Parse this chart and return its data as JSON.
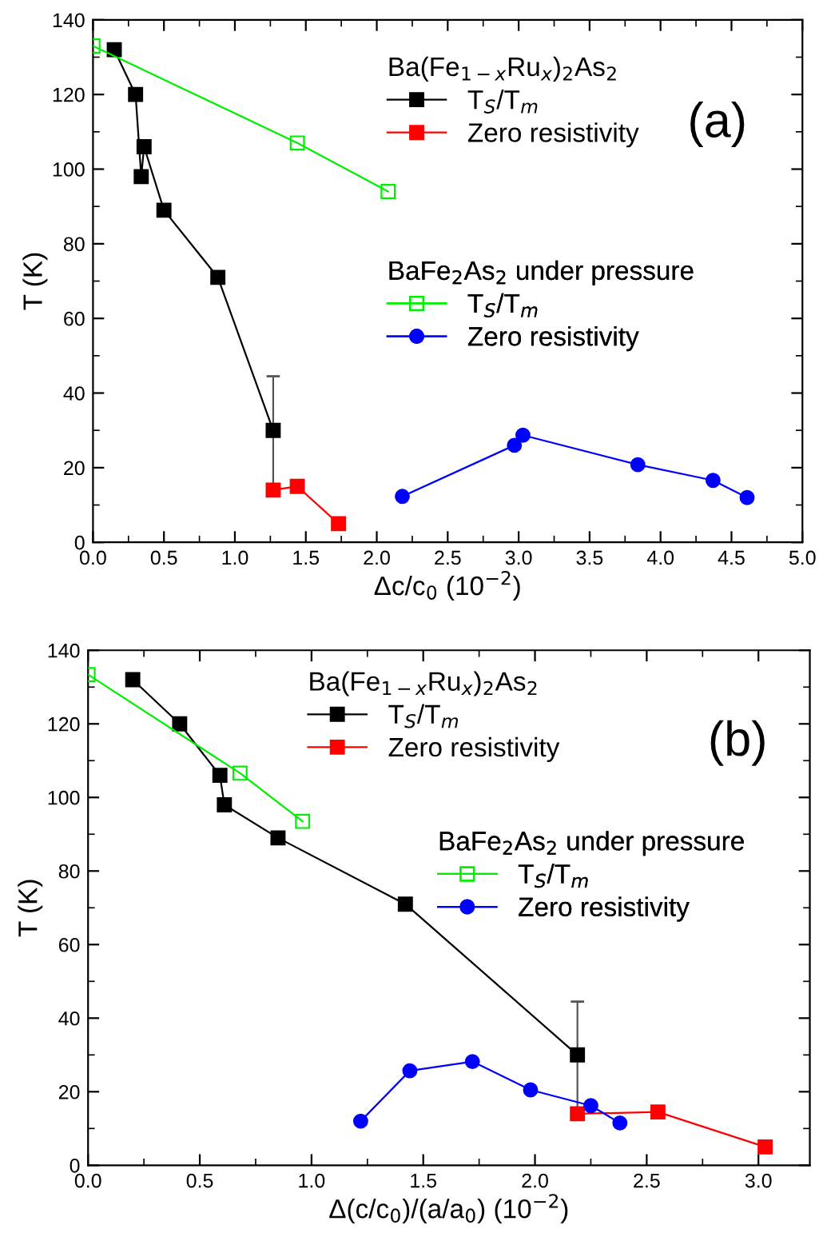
{
  "chart_data": [
    {
      "type": "line",
      "title": "(a)",
      "xlabel": "Δc/c$_{0}$ (10$^{−2}$)",
      "ylabel": "T (K)",
      "annotations": [
        "Ba(Fe$_{1−x}$Ru$_{x}$)$_{2}$As$_{2}$",
        "BaFe$_{2}$As$_{2}$ under pressure"
      ],
      "xlim": [
        0,
        5
      ],
      "xticks": [
        {
          "value": 0,
          "label": "0.0"
        },
        {
          "value": 0.5,
          "label": "0.5"
        },
        {
          "value": 1,
          "label": "1.0"
        },
        {
          "value": 1.5,
          "label": "1.5"
        },
        {
          "value": 2,
          "label": "2.0"
        },
        {
          "value": 2.5,
          "label": "2.5"
        },
        {
          "value": 3,
          "label": "3.0"
        },
        {
          "value": 3.5,
          "label": "3.5"
        },
        {
          "value": 4,
          "label": "4.0"
        },
        {
          "value": 4.5,
          "label": "4.5"
        },
        {
          "value": 5,
          "label": "5.0"
        }
      ],
      "ylim": [
        0,
        140
      ],
      "yticks": [
        0,
        20,
        40,
        60,
        80,
        100,
        120,
        140
      ],
      "grid": false,
      "legend": "top right",
      "series": [
        {
          "name": "T$_{S}$/T$_{m}$",
          "color": "#000000",
          "marker": "square",
          "x": [
            0.15,
            0.3,
            0.34,
            0.36,
            0.5,
            0.88,
            1.27
          ],
          "values": [
            132,
            120,
            98,
            106,
            89,
            71,
            30
          ],
          "errors": [
            null,
            null,
            null,
            null,
            null,
            1.5,
            14.5
          ]
        },
        {
          "name": "Zero resistivity",
          "color": "#ff0000",
          "marker": "square",
          "x": [
            1.27,
            1.44,
            1.73
          ],
          "values": [
            14,
            15,
            5
          ]
        },
        {
          "name": "T$_{S}$/T$_{m}$",
          "color": "#00ee00",
          "marker": "square",
          "x": [
            0.0,
            1.44,
            2.08
          ],
          "values": [
            133,
            107,
            94
          ]
        },
        {
          "name": "Zero resistivity",
          "color": "#0000ff",
          "marker": "circle",
          "x": [
            2.18,
            2.97,
            3.03,
            3.84,
            4.37,
            4.61
          ],
          "values": [
            12.3,
            26,
            28.7,
            20.8,
            16.6,
            12
          ]
        }
      ]
    },
    {
      "type": "line",
      "title": "(b)",
      "xlabel": "Δ(c/c$_{0}$)/(a/a$_{0}$) (10$^{−2}$)",
      "ylabel": "T (K)",
      "annotations": [
        "Ba(Fe$_{1−x}$Ru$_{x}$)$_{2}$As$_{2}$",
        "BaFe$_{2}$As$_{2}$ under pressure"
      ],
      "xlim": [
        0,
        3.23
      ],
      "xticks": [
        {
          "value": 0,
          "label": "0.0"
        },
        {
          "value": 0.5,
          "label": "0.5"
        },
        {
          "value": 1,
          "label": "1.0"
        },
        {
          "value": 1.5,
          "label": "1.5"
        },
        {
          "value": 2,
          "label": "2.0"
        },
        {
          "value": 2.5,
          "label": "2.5"
        },
        {
          "value": 3,
          "label": "3.0"
        }
      ],
      "ylim": [
        0,
        140
      ],
      "yticks": [
        0,
        20,
        40,
        60,
        80,
        100,
        120,
        140
      ],
      "grid": false,
      "legend": "top right",
      "series": [
        {
          "name": "T$_{S}$/T$_{m}$",
          "color": "#000000",
          "marker": "square",
          "x": [
            0.2,
            0.41,
            0.59,
            0.61,
            0.85,
            1.42,
            2.19
          ],
          "values": [
            132,
            120,
            106,
            98,
            89,
            71,
            30
          ],
          "errors": [
            null,
            null,
            null,
            null,
            null,
            1.5,
            14.5
          ]
        },
        {
          "name": "Zero resistivity",
          "color": "#ff0000",
          "marker": "square",
          "x": [
            2.19,
            2.55,
            3.03
          ],
          "values": [
            14,
            14.5,
            5
          ]
        },
        {
          "name": "T$_{S}$/T$_{m}$",
          "color": "#00ee00",
          "marker": "square",
          "x": [
            0.0,
            0.68,
            0.96
          ],
          "values": [
            133.4,
            106.6,
            93.5
          ]
        },
        {
          "name": "Zero resistivity",
          "color": "#0000ff",
          "marker": "circle",
          "x": [
            1.22,
            1.44,
            1.72,
            1.98,
            2.25,
            2.38
          ],
          "values": [
            12,
            25.7,
            28.2,
            20.5,
            16.2,
            11.5
          ]
        }
      ]
    }
  ]
}
